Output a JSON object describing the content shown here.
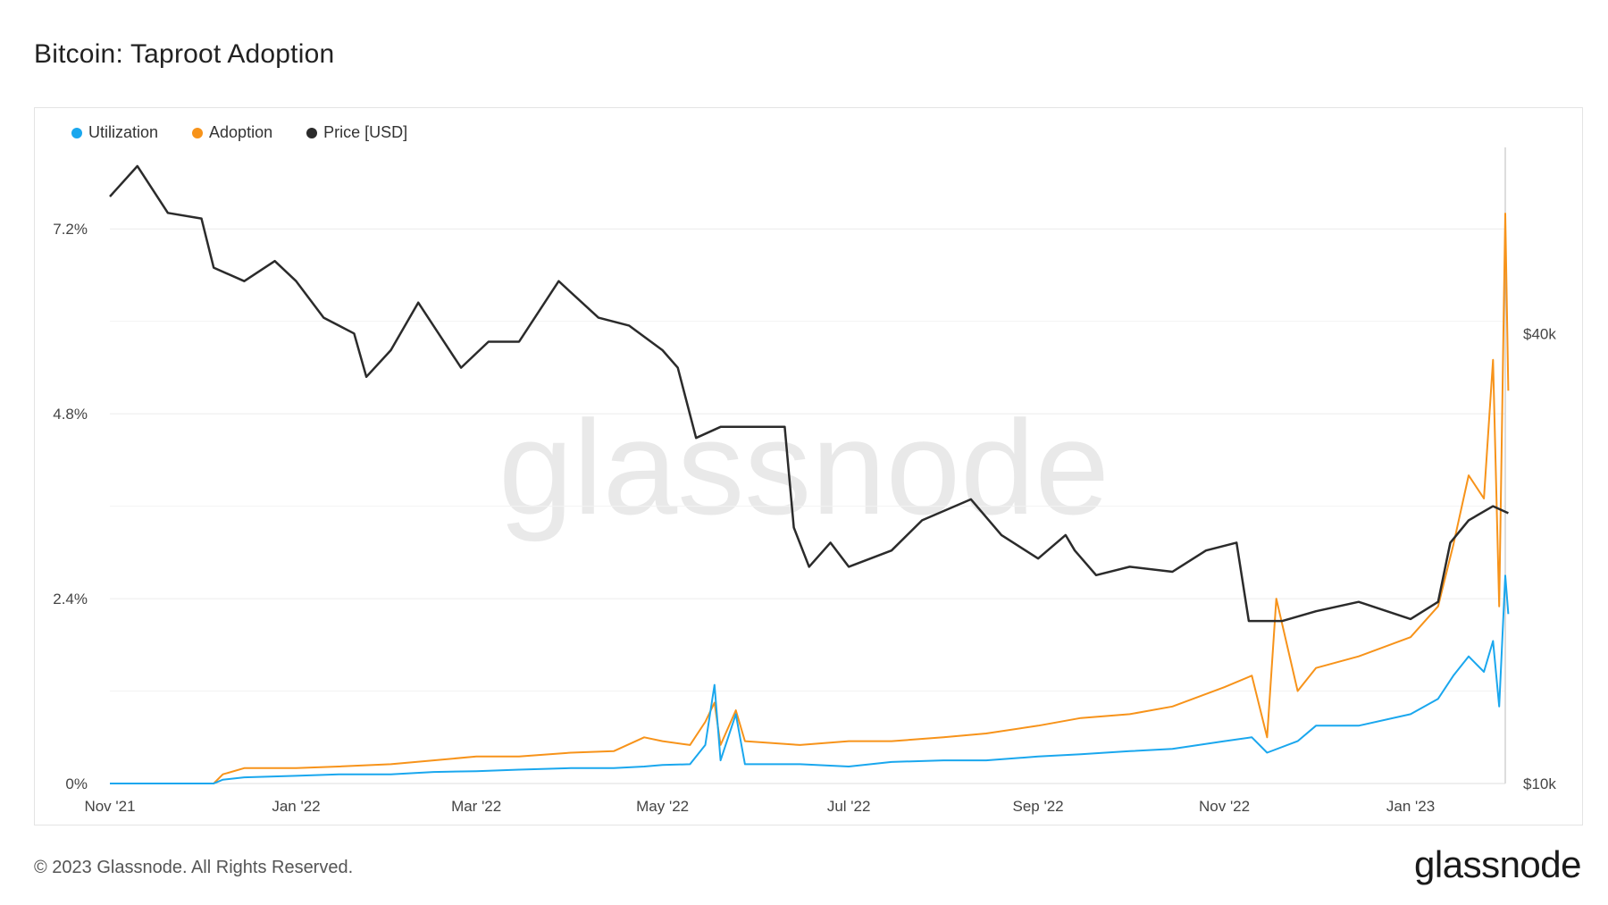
{
  "header": {
    "title": "Bitcoin: Taproot Adoption"
  },
  "footer": {
    "copyright": "© 2023 Glassnode. All Rights Reserved.",
    "logo": "glassnode"
  },
  "watermark": "glassnode",
  "colors": {
    "utilization": "#1aa7ee",
    "adoption": "#f7931a",
    "price": "#2b2b2b",
    "grid": "#ececec"
  },
  "chart_data": {
    "type": "line",
    "title": "Bitcoin: Taproot Adoption",
    "legend_position": "top-left",
    "grid": true,
    "x_ticks": [
      "Nov '21",
      "Jan '22",
      "Mar '22",
      "May '22",
      "Jul '22",
      "Sep '22",
      "Nov '22",
      "Jan '23"
    ],
    "x_range": [
      "2021-11-01",
      "2023-02-01"
    ],
    "y_left": {
      "ticks": [
        "0%",
        "2.4%",
        "4.8%",
        "7.2%"
      ],
      "tick_values": [
        0,
        2.4,
        4.8,
        7.2
      ],
      "range": [
        0,
        8.2
      ]
    },
    "y_right": {
      "ticks": [
        "$10k",
        "$40k"
      ],
      "tick_values": [
        10000,
        40000
      ],
      "scale": "log",
      "range": [
        10000,
        70000
      ]
    },
    "series": [
      {
        "name": "Utilization",
        "axis": "left",
        "points": [
          [
            "2021-11-01",
            0.0
          ],
          [
            "2021-11-15",
            0.0
          ],
          [
            "2021-12-01",
            0.0
          ],
          [
            "2021-12-05",
            0.0
          ],
          [
            "2021-12-08",
            0.05
          ],
          [
            "2021-12-15",
            0.08
          ],
          [
            "2022-01-01",
            0.1
          ],
          [
            "2022-01-15",
            0.12
          ],
          [
            "2022-02-01",
            0.12
          ],
          [
            "2022-02-15",
            0.15
          ],
          [
            "2022-03-01",
            0.16
          ],
          [
            "2022-03-15",
            0.18
          ],
          [
            "2022-04-01",
            0.2
          ],
          [
            "2022-04-15",
            0.2
          ],
          [
            "2022-04-25",
            0.22
          ],
          [
            "2022-05-01",
            0.24
          ],
          [
            "2022-05-10",
            0.25
          ],
          [
            "2022-05-15",
            0.5
          ],
          [
            "2022-05-18",
            1.28
          ],
          [
            "2022-05-20",
            0.3
          ],
          [
            "2022-05-25",
            0.9
          ],
          [
            "2022-05-28",
            0.25
          ],
          [
            "2022-06-15",
            0.25
          ],
          [
            "2022-07-01",
            0.22
          ],
          [
            "2022-07-15",
            0.28
          ],
          [
            "2022-08-01",
            0.3
          ],
          [
            "2022-08-15",
            0.3
          ],
          [
            "2022-09-01",
            0.35
          ],
          [
            "2022-09-15",
            0.38
          ],
          [
            "2022-10-01",
            0.42
          ],
          [
            "2022-10-15",
            0.45
          ],
          [
            "2022-11-01",
            0.55
          ],
          [
            "2022-11-10",
            0.6
          ],
          [
            "2022-11-15",
            0.4
          ],
          [
            "2022-11-25",
            0.55
          ],
          [
            "2022-12-01",
            0.75
          ],
          [
            "2022-12-15",
            0.75
          ],
          [
            "2023-01-01",
            0.9
          ],
          [
            "2023-01-10",
            1.1
          ],
          [
            "2023-01-15",
            1.4
          ],
          [
            "2023-01-20",
            1.65
          ],
          [
            "2023-01-25",
            1.45
          ],
          [
            "2023-01-28",
            1.85
          ],
          [
            "2023-01-30",
            1.0
          ],
          [
            "2023-02-01",
            2.7
          ],
          [
            "2023-02-02",
            2.2
          ]
        ]
      },
      {
        "name": "Adoption",
        "axis": "left",
        "points": [
          [
            "2021-11-01",
            0.0
          ],
          [
            "2021-11-15",
            0.0
          ],
          [
            "2021-12-01",
            0.0
          ],
          [
            "2021-12-05",
            0.0
          ],
          [
            "2021-12-08",
            0.12
          ],
          [
            "2021-12-15",
            0.2
          ],
          [
            "2022-01-01",
            0.2
          ],
          [
            "2022-01-15",
            0.22
          ],
          [
            "2022-02-01",
            0.25
          ],
          [
            "2022-02-15",
            0.3
          ],
          [
            "2022-03-01",
            0.35
          ],
          [
            "2022-03-15",
            0.35
          ],
          [
            "2022-04-01",
            0.4
          ],
          [
            "2022-04-15",
            0.42
          ],
          [
            "2022-04-25",
            0.6
          ],
          [
            "2022-05-01",
            0.55
          ],
          [
            "2022-05-10",
            0.5
          ],
          [
            "2022-05-15",
            0.8
          ],
          [
            "2022-05-18",
            1.05
          ],
          [
            "2022-05-20",
            0.5
          ],
          [
            "2022-05-25",
            0.95
          ],
          [
            "2022-05-28",
            0.55
          ],
          [
            "2022-06-15",
            0.5
          ],
          [
            "2022-07-01",
            0.55
          ],
          [
            "2022-07-15",
            0.55
          ],
          [
            "2022-08-01",
            0.6
          ],
          [
            "2022-08-15",
            0.65
          ],
          [
            "2022-09-01",
            0.75
          ],
          [
            "2022-09-15",
            0.85
          ],
          [
            "2022-10-01",
            0.9
          ],
          [
            "2022-10-15",
            1.0
          ],
          [
            "2022-11-01",
            1.25
          ],
          [
            "2022-11-10",
            1.4
          ],
          [
            "2022-11-15",
            0.6
          ],
          [
            "2022-11-18",
            2.4
          ],
          [
            "2022-11-25",
            1.2
          ],
          [
            "2022-12-01",
            1.5
          ],
          [
            "2022-12-15",
            1.65
          ],
          [
            "2023-01-01",
            1.9
          ],
          [
            "2023-01-10",
            2.3
          ],
          [
            "2023-01-15",
            3.1
          ],
          [
            "2023-01-20",
            4.0
          ],
          [
            "2023-01-25",
            3.7
          ],
          [
            "2023-01-28",
            5.5
          ],
          [
            "2023-01-30",
            2.3
          ],
          [
            "2023-02-01",
            7.4
          ],
          [
            "2023-02-02",
            5.1
          ]
        ]
      },
      {
        "name": "Price [USD]",
        "axis": "right",
        "points": [
          [
            "2021-11-01",
            61000
          ],
          [
            "2021-11-10",
            67000
          ],
          [
            "2021-11-20",
            58000
          ],
          [
            "2021-12-01",
            57000
          ],
          [
            "2021-12-05",
            49000
          ],
          [
            "2021-12-15",
            47000
          ],
          [
            "2021-12-25",
            50000
          ],
          [
            "2022-01-01",
            47000
          ],
          [
            "2022-01-10",
            42000
          ],
          [
            "2022-01-20",
            40000
          ],
          [
            "2022-01-24",
            35000
          ],
          [
            "2022-02-01",
            38000
          ],
          [
            "2022-02-10",
            44000
          ],
          [
            "2022-02-24",
            36000
          ],
          [
            "2022-03-05",
            39000
          ],
          [
            "2022-03-15",
            39000
          ],
          [
            "2022-03-28",
            47000
          ],
          [
            "2022-04-10",
            42000
          ],
          [
            "2022-04-20",
            41000
          ],
          [
            "2022-05-01",
            38000
          ],
          [
            "2022-05-06",
            36000
          ],
          [
            "2022-05-12",
            29000
          ],
          [
            "2022-05-20",
            30000
          ],
          [
            "2022-06-01",
            30000
          ],
          [
            "2022-06-10",
            30000
          ],
          [
            "2022-06-13",
            22000
          ],
          [
            "2022-06-18",
            19500
          ],
          [
            "2022-06-25",
            21000
          ],
          [
            "2022-07-01",
            19500
          ],
          [
            "2022-07-15",
            20500
          ],
          [
            "2022-07-25",
            22500
          ],
          [
            "2022-08-10",
            24000
          ],
          [
            "2022-08-20",
            21500
          ],
          [
            "2022-09-01",
            20000
          ],
          [
            "2022-09-10",
            21500
          ],
          [
            "2022-09-13",
            20500
          ],
          [
            "2022-09-20",
            19000
          ],
          [
            "2022-10-01",
            19500
          ],
          [
            "2022-10-15",
            19200
          ],
          [
            "2022-10-26",
            20500
          ],
          [
            "2022-11-05",
            21000
          ],
          [
            "2022-11-09",
            16500
          ],
          [
            "2022-11-20",
            16500
          ],
          [
            "2022-12-01",
            17000
          ],
          [
            "2022-12-15",
            17500
          ],
          [
            "2023-01-01",
            16600
          ],
          [
            "2023-01-10",
            17500
          ],
          [
            "2023-01-14",
            21000
          ],
          [
            "2023-01-20",
            22500
          ],
          [
            "2023-01-28",
            23500
          ],
          [
            "2023-02-02",
            23000
          ]
        ]
      }
    ]
  }
}
